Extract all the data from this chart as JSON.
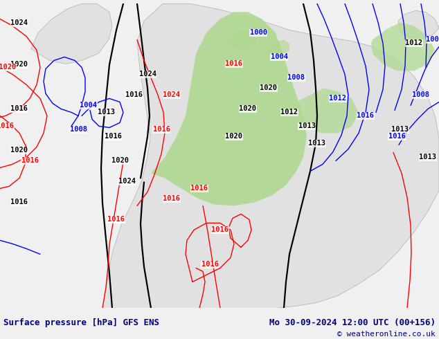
{
  "title_left": "Surface pressure [hPa] GFS ENS",
  "title_right": "Mo 30-09-2024 12:00 UTC (00+156)",
  "copyright": "© weatheronline.co.uk",
  "bg_color": "#d0dfe8",
  "land_color": "#e0e0e0",
  "green_color": "#b0d890",
  "bottom_bar_color": "#f0f0f0",
  "bottom_text_color": "#000080",
  "figsize": [
    6.34,
    4.9
  ],
  "dpi": 100
}
